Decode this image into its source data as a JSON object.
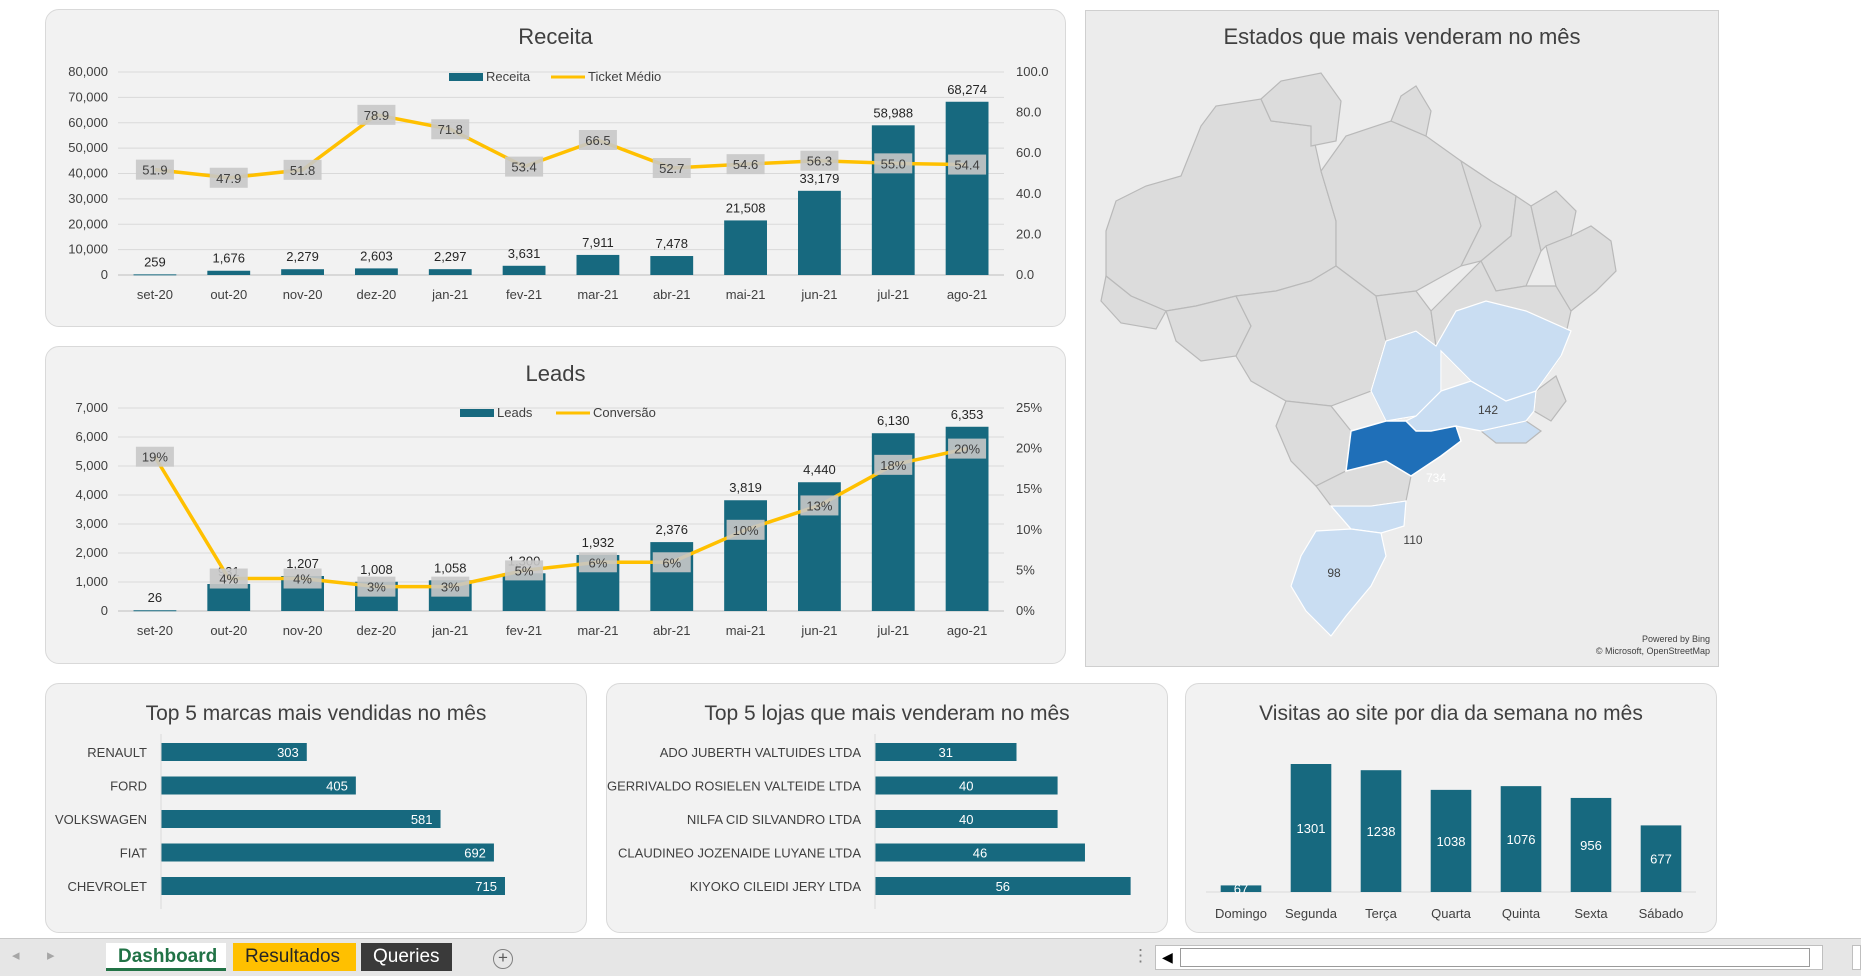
{
  "colors": {
    "bar": "#17697f",
    "line": "#ffc000",
    "accent_dark": "#1f6fb8",
    "accent_light": "#c9ddf2"
  },
  "receita": {
    "title": "Receita",
    "legend": [
      "Receita",
      "Ticket Médio"
    ],
    "categories": [
      "set-20",
      "out-20",
      "nov-20",
      "dez-20",
      "jan-21",
      "fev-21",
      "mar-21",
      "abr-21",
      "mai-21",
      "jun-21",
      "jul-21",
      "ago-21"
    ],
    "values": [
      259,
      1676,
      2279,
      2603,
      2297,
      3631,
      7911,
      7478,
      21508,
      33179,
      58988,
      68274
    ],
    "line": [
      51.9,
      47.9,
      51.8,
      78.9,
      71.8,
      53.4,
      66.5,
      52.7,
      54.6,
      56.3,
      55.0,
      54.4
    ],
    "y_ticks": [
      "80,000",
      "70,000",
      "60,000",
      "50,000",
      "40,000",
      "30,000",
      "20,000",
      "10,000",
      "0"
    ],
    "y2_ticks": [
      "100.0",
      "80.0",
      "60.0",
      "40.0",
      "20.0",
      "0.0"
    ],
    "ylim": [
      0,
      80000
    ],
    "y2lim": [
      0,
      100
    ]
  },
  "leads": {
    "title": "Leads",
    "legend": [
      "Leads",
      "Conversão"
    ],
    "categories": [
      "set-20",
      "out-20",
      "nov-20",
      "dez-20",
      "jan-21",
      "fev-21",
      "mar-21",
      "abr-21",
      "mai-21",
      "jun-21",
      "jul-21",
      "ago-21"
    ],
    "values": [
      26,
      931,
      1207,
      1008,
      1058,
      1300,
      1932,
      2376,
      3819,
      4440,
      6130,
      6353
    ],
    "line": [
      19,
      4,
      4,
      3,
      3,
      5,
      6,
      6,
      10,
      13,
      18,
      20
    ],
    "y_ticks": [
      "7,000",
      "6,000",
      "5,000",
      "4,000",
      "3,000",
      "2,000",
      "1,000",
      "0"
    ],
    "y2_ticks": [
      "25%",
      "20%",
      "15%",
      "10%",
      "5%",
      "0%"
    ],
    "ylim": [
      0,
      7000
    ],
    "y2lim": [
      0,
      25
    ]
  },
  "mapa": {
    "title": "Estados que mais venderam no mês",
    "labels": {
      "sp": "734",
      "mg": "142",
      "sc": "110",
      "rs": "98"
    },
    "credit1": "Powered by Bing",
    "credit2": "© Microsoft, OpenStreetMap"
  },
  "marcas": {
    "title": "Top 5 marcas mais vendidas no mês",
    "categories": [
      "RENAULT",
      "FORD",
      "VOLKSWAGEN",
      "FIAT",
      "CHEVROLET"
    ],
    "values": [
      303,
      405,
      581,
      692,
      715
    ]
  },
  "lojas": {
    "title": "Top 5 lojas que mais venderam no mês",
    "categories": [
      "ADO JUBERTH VALTUIDES LTDA",
      "GERRIVALDO ROSIELEN VALTEIDE LTDA",
      "NILFA CID SILVANDRO LTDA",
      "CLAUDINEO JOZENAIDE LUYANE LTDA",
      "KIYOKO CILEIDI JERY LTDA"
    ],
    "values": [
      31,
      40,
      40,
      46,
      56
    ]
  },
  "visitas": {
    "title": "Visitas ao site por dia da semana no mês",
    "categories": [
      "Domingo",
      "Segunda",
      "Terça",
      "Quarta",
      "Quinta",
      "Sexta",
      "Sábado"
    ],
    "values": [
      67,
      1301,
      1238,
      1038,
      1076,
      956,
      677
    ]
  },
  "sheet_tabs": {
    "dashboard": "Dashboard",
    "resultados": "Resultados",
    "queries": "Queries",
    "add": "+",
    "nav_prev": "◂",
    "nav_next": "▸",
    "more": "⋮",
    "scroll_left": "◀"
  }
}
